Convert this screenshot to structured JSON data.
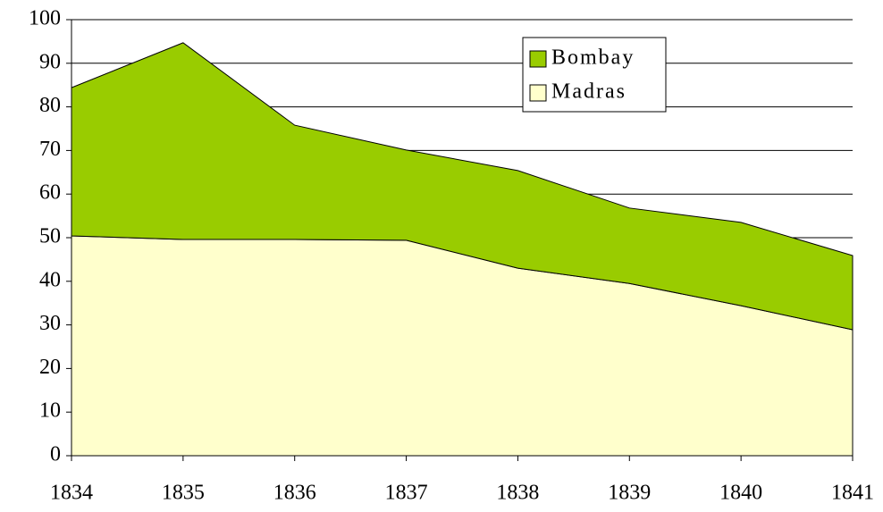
{
  "chart_data": {
    "type": "stacked_area",
    "categories": [
      "1834",
      "1835",
      "1836",
      "1837",
      "1838",
      "1839",
      "1840",
      "1841"
    ],
    "series": [
      {
        "name": "Madras",
        "color": "#ffffcc",
        "values": [
          50.4,
          49.6,
          49.6,
          49.4,
          43,
          39.5,
          34.4,
          28.9
        ]
      },
      {
        "name": "Bombay",
        "color": "#99cc00",
        "values": [
          34,
          45.1,
          26.2,
          20.7,
          22.4,
          17.3,
          19.1,
          17
        ]
      }
    ],
    "ylim": [
      0,
      100
    ],
    "yticks": [
      0,
      10,
      20,
      30,
      40,
      50,
      60,
      70,
      80,
      90,
      100
    ],
    "grid": true,
    "legend": "top-right"
  }
}
